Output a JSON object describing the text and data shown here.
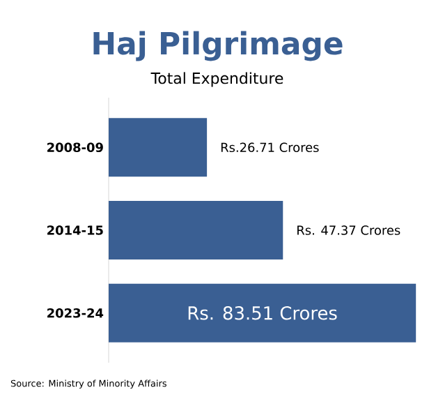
{
  "chart_data": {
    "type": "bar",
    "orientation": "horizontal",
    "title": "Haj Pilgrimage",
    "subtitle": "Total Expenditure",
    "categories": [
      "2008-09",
      "2014-15",
      "2023-24"
    ],
    "values": [
      26.71,
      47.37,
      83.51
    ],
    "value_labels": [
      "Rs.26.71 Crores",
      "Rs. 47.37 Crores",
      "Rs. 83.51 Crores"
    ],
    "color": "#3a5f93",
    "annotations": [
      "Source: Ministry of Minority Affairs"
    ]
  }
}
